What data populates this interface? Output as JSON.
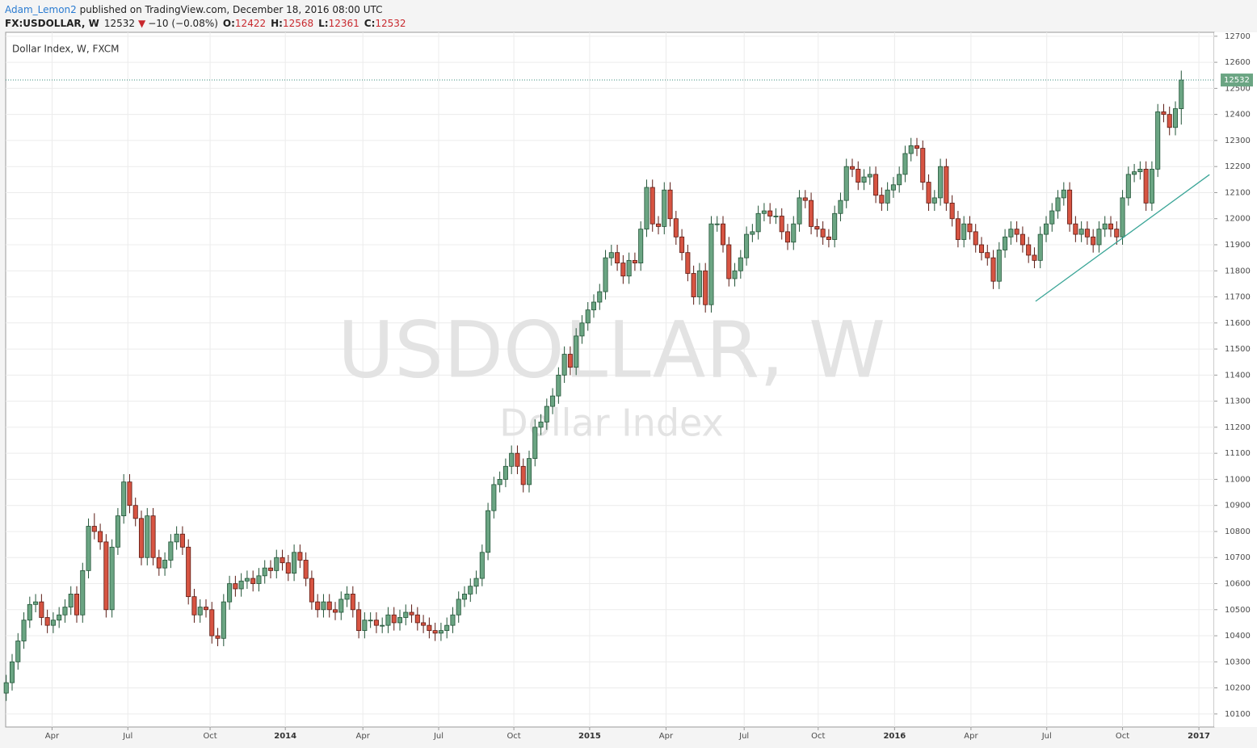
{
  "header": {
    "author": "Adam_Lemon2",
    "published": " published on TradingView.com, December 18, 2016 08:00 UTC",
    "symbol": "FX:USDOLLAR, W",
    "change": "−10 (−0.08%)",
    "o_label": "O:",
    "h_label": "H:",
    "l_label": "L:",
    "c_label": "C:"
  },
  "chart_data": {
    "type": "candlestick",
    "title": "Dollar Index, W, FXCM",
    "watermark": "USDOLLAR, W",
    "watermark_sub": "Dollar Index",
    "up_color": "#6ba583",
    "down_color": "#d75442",
    "up_border": "#225437",
    "down_border": "#5b1a13",
    "trend_color": "#3aa597",
    "grid": true,
    "xlim": [
      -0.1,
      205.6
    ],
    "ylim": [
      10050,
      12715
    ],
    "yticks": [
      10100,
      10200,
      10300,
      10400,
      10500,
      10600,
      10700,
      10800,
      10900,
      11000,
      11100,
      11200,
      11300,
      11400,
      11500,
      11600,
      11700,
      11800,
      11900,
      12000,
      12100,
      12200,
      12300,
      12400,
      12500,
      12600,
      12700
    ],
    "xticks": [
      {
        "value": 7.8,
        "label": "Apr"
      },
      {
        "value": 20.7,
        "label": "Jul"
      },
      {
        "value": 34.7,
        "label": "Oct"
      },
      {
        "value": 47.5,
        "label": "2014"
      },
      {
        "value": 60.7,
        "label": "Apr"
      },
      {
        "value": 73.6,
        "label": "Jul"
      },
      {
        "value": 86.4,
        "label": "Oct"
      },
      {
        "value": 99.3,
        "label": "2015"
      },
      {
        "value": 112.3,
        "label": "Apr"
      },
      {
        "value": 125.6,
        "label": "Jul"
      },
      {
        "value": 138.2,
        "label": "Oct"
      },
      {
        "value": 151.2,
        "label": "2016"
      },
      {
        "value": 164.2,
        "label": "Apr"
      },
      {
        "value": 177.1,
        "label": "Jul"
      },
      {
        "value": 190,
        "label": "Oct"
      },
      {
        "value": 203,
        "label": "2017"
      }
    ],
    "trend_line": {
      "x": [
        175.2,
        204.8
      ],
      "y": [
        11683,
        12169
      ]
    },
    "ohlc": [
      [
        10180,
        10250,
        10150,
        10220
      ],
      [
        10220,
        10330,
        10190,
        10300
      ],
      [
        10300,
        10410,
        10270,
        10380
      ],
      [
        10380,
        10490,
        10350,
        10460
      ],
      [
        10460,
        10550,
        10430,
        10520
      ],
      [
        10520,
        10560,
        10490,
        10530
      ],
      [
        10530,
        10560,
        10440,
        10470
      ],
      [
        10470,
        10500,
        10410,
        10440
      ],
      [
        10440,
        10490,
        10410,
        10460
      ],
      [
        10460,
        10510,
        10430,
        10480
      ],
      [
        10480,
        10540,
        10450,
        10510
      ],
      [
        10510,
        10590,
        10480,
        10560
      ],
      [
        10560,
        10590,
        10450,
        10480
      ],
      [
        10480,
        10680,
        10450,
        10650
      ],
      [
        10650,
        10850,
        10620,
        10820
      ],
      [
        10820,
        10870,
        10770,
        10800
      ],
      [
        10800,
        10830,
        10730,
        10760
      ],
      [
        10760,
        10790,
        10470,
        10500
      ],
      [
        10500,
        10770,
        10470,
        10740
      ],
      [
        10740,
        10890,
        10710,
        10860
      ],
      [
        10860,
        11020,
        10830,
        10990
      ],
      [
        10990,
        11020,
        10870,
        10900
      ],
      [
        10900,
        10930,
        10820,
        10850
      ],
      [
        10850,
        10880,
        10670,
        10700
      ],
      [
        10700,
        10890,
        10670,
        10860
      ],
      [
        10860,
        10890,
        10670,
        10700
      ],
      [
        10700,
        10730,
        10630,
        10660
      ],
      [
        10660,
        10720,
        10630,
        10690
      ],
      [
        10690,
        10790,
        10660,
        10760
      ],
      [
        10760,
        10820,
        10730,
        10790
      ],
      [
        10790,
        10820,
        10710,
        10740
      ],
      [
        10740,
        10770,
        10520,
        10550
      ],
      [
        10550,
        10580,
        10450,
        10480
      ],
      [
        10480,
        10540,
        10450,
        10510
      ],
      [
        10510,
        10540,
        10470,
        10500
      ],
      [
        10500,
        10530,
        10370,
        10400
      ],
      [
        10400,
        10430,
        10360,
        10390
      ],
      [
        10390,
        10560,
        10360,
        10530
      ],
      [
        10530,
        10630,
        10500,
        10600
      ],
      [
        10600,
        10630,
        10550,
        10580
      ],
      [
        10580,
        10640,
        10550,
        10610
      ],
      [
        10610,
        10650,
        10580,
        10620
      ],
      [
        10620,
        10650,
        10570,
        10600
      ],
      [
        10600,
        10660,
        10570,
        10630
      ],
      [
        10630,
        10690,
        10600,
        10660
      ],
      [
        10660,
        10690,
        10620,
        10650
      ],
      [
        10650,
        10730,
        10620,
        10700
      ],
      [
        10700,
        10730,
        10650,
        10680
      ],
      [
        10680,
        10710,
        10610,
        10640
      ],
      [
        10640,
        10750,
        10610,
        10720
      ],
      [
        10720,
        10750,
        10660,
        10690
      ],
      [
        10690,
        10720,
        10590,
        10620
      ],
      [
        10620,
        10650,
        10500,
        10530
      ],
      [
        10530,
        10560,
        10470,
        10500
      ],
      [
        10500,
        10560,
        10470,
        10530
      ],
      [
        10530,
        10560,
        10470,
        10500
      ],
      [
        10500,
        10530,
        10460,
        10490
      ],
      [
        10490,
        10570,
        10460,
        10540
      ],
      [
        10540,
        10590,
        10510,
        10560
      ],
      [
        10560,
        10590,
        10470,
        10500
      ],
      [
        10500,
        10530,
        10390,
        10420
      ],
      [
        10420,
        10490,
        10390,
        10460
      ],
      [
        10460,
        10490,
        10430,
        10460
      ],
      [
        10460,
        10490,
        10410,
        10440
      ],
      [
        10440,
        10470,
        10410,
        10440
      ],
      [
        10440,
        10510,
        10410,
        10480
      ],
      [
        10480,
        10510,
        10420,
        10450
      ],
      [
        10450,
        10500,
        10420,
        10470
      ],
      [
        10470,
        10520,
        10440,
        10490
      ],
      [
        10490,
        10520,
        10450,
        10480
      ],
      [
        10480,
        10510,
        10420,
        10450
      ],
      [
        10450,
        10480,
        10410,
        10440
      ],
      [
        10440,
        10470,
        10390,
        10420
      ],
      [
        10420,
        10450,
        10380,
        10410
      ],
      [
        10410,
        10450,
        10380,
        10420
      ],
      [
        10420,
        10470,
        10390,
        10440
      ],
      [
        10440,
        10510,
        10410,
        10480
      ],
      [
        10480,
        10570,
        10450,
        10540
      ],
      [
        10540,
        10590,
        10510,
        10560
      ],
      [
        10560,
        10620,
        10530,
        10590
      ],
      [
        10590,
        10650,
        10560,
        10620
      ],
      [
        10620,
        10750,
        10590,
        10720
      ],
      [
        10720,
        10910,
        10690,
        10880
      ],
      [
        10880,
        11010,
        10850,
        10980
      ],
      [
        10980,
        11030,
        10950,
        11000
      ],
      [
        11000,
        11080,
        10970,
        11050
      ],
      [
        11050,
        11130,
        11020,
        11100
      ],
      [
        11100,
        11130,
        11020,
        11050
      ],
      [
        11050,
        11080,
        10950,
        10980
      ],
      [
        10980,
        11110,
        10950,
        11080
      ],
      [
        11080,
        11230,
        11050,
        11200
      ],
      [
        11200,
        11250,
        11170,
        11220
      ],
      [
        11220,
        11310,
        11190,
        11280
      ],
      [
        11280,
        11350,
        11250,
        11320
      ],
      [
        11320,
        11430,
        11290,
        11400
      ],
      [
        11400,
        11510,
        11370,
        11480
      ],
      [
        11480,
        11510,
        11400,
        11430
      ],
      [
        11430,
        11580,
        11400,
        11550
      ],
      [
        11550,
        11630,
        11520,
        11600
      ],
      [
        11600,
        11680,
        11570,
        11650
      ],
      [
        11650,
        11710,
        11620,
        11680
      ],
      [
        11680,
        11750,
        11650,
        11720
      ],
      [
        11720,
        11880,
        11690,
        11850
      ],
      [
        11850,
        11900,
        11820,
        11870
      ],
      [
        11870,
        11900,
        11800,
        11830
      ],
      [
        11830,
        11860,
        11750,
        11780
      ],
      [
        11780,
        11870,
        11750,
        11840
      ],
      [
        11840,
        11870,
        11800,
        11830
      ],
      [
        11830,
        11990,
        11800,
        11960
      ],
      [
        11960,
        12150,
        11930,
        12120
      ],
      [
        12120,
        12150,
        11950,
        11980
      ],
      [
        11980,
        12010,
        11940,
        11970
      ],
      [
        11970,
        12140,
        11940,
        12110
      ],
      [
        12110,
        12140,
        11970,
        12000
      ],
      [
        12000,
        12030,
        11900,
        11930
      ],
      [
        11930,
        11960,
        11840,
        11870
      ],
      [
        11870,
        11900,
        11760,
        11790
      ],
      [
        11790,
        11820,
        11670,
        11700
      ],
      [
        11700,
        11830,
        11670,
        11800
      ],
      [
        11800,
        11830,
        11640,
        11670
      ],
      [
        11670,
        12010,
        11640,
        11980
      ],
      [
        11980,
        12010,
        11950,
        11980
      ],
      [
        11980,
        12010,
        11870,
        11900
      ],
      [
        11900,
        11930,
        11740,
        11770
      ],
      [
        11770,
        11830,
        11740,
        11800
      ],
      [
        11800,
        11880,
        11770,
        11850
      ],
      [
        11850,
        11970,
        11820,
        11940
      ],
      [
        11940,
        11980,
        11910,
        11950
      ],
      [
        11950,
        12050,
        11920,
        12020
      ],
      [
        12020,
        12060,
        11990,
        12030
      ],
      [
        12030,
        12060,
        11980,
        12010
      ],
      [
        12010,
        12040,
        11980,
        12010
      ],
      [
        12010,
        12040,
        11920,
        11950
      ],
      [
        11950,
        11980,
        11880,
        11910
      ],
      [
        11910,
        12010,
        11880,
        11980
      ],
      [
        11980,
        12110,
        11950,
        12080
      ],
      [
        12080,
        12110,
        12040,
        12070
      ],
      [
        12070,
        12100,
        11940,
        11970
      ],
      [
        11970,
        12000,
        11930,
        11960
      ],
      [
        11960,
        11990,
        11900,
        11930
      ],
      [
        11930,
        11960,
        11890,
        11920
      ],
      [
        11920,
        12050,
        11890,
        12020
      ],
      [
        12020,
        12100,
        11990,
        12070
      ],
      [
        12070,
        12230,
        12040,
        12200
      ],
      [
        12200,
        12230,
        12160,
        12190
      ],
      [
        12190,
        12220,
        12110,
        12140
      ],
      [
        12140,
        12190,
        12110,
        12160
      ],
      [
        12160,
        12200,
        12130,
        12170
      ],
      [
        12170,
        12200,
        12060,
        12090
      ],
      [
        12090,
        12120,
        12030,
        12060
      ],
      [
        12060,
        12140,
        12030,
        12110
      ],
      [
        12110,
        12160,
        12080,
        12130
      ],
      [
        12130,
        12200,
        12100,
        12170
      ],
      [
        12170,
        12280,
        12140,
        12250
      ],
      [
        12250,
        12310,
        12220,
        12280
      ],
      [
        12280,
        12310,
        12240,
        12270
      ],
      [
        12270,
        12300,
        12110,
        12140
      ],
      [
        12140,
        12170,
        12030,
        12060
      ],
      [
        12060,
        12110,
        12030,
        12080
      ],
      [
        12080,
        12230,
        12050,
        12200
      ],
      [
        12200,
        12230,
        12030,
        12060
      ],
      [
        12060,
        12090,
        11970,
        12000
      ],
      [
        12000,
        12030,
        11890,
        11920
      ],
      [
        11920,
        12010,
        11890,
        11980
      ],
      [
        11980,
        12010,
        11920,
        11950
      ],
      [
        11950,
        11980,
        11870,
        11900
      ],
      [
        11900,
        11930,
        11840,
        11870
      ],
      [
        11870,
        11900,
        11820,
        11850
      ],
      [
        11850,
        11880,
        11730,
        11760
      ],
      [
        11760,
        11910,
        11730,
        11880
      ],
      [
        11880,
        11960,
        11850,
        11930
      ],
      [
        11930,
        11990,
        11900,
        11960
      ],
      [
        11960,
        11990,
        11910,
        11940
      ],
      [
        11940,
        11970,
        11870,
        11900
      ],
      [
        11900,
        11930,
        11830,
        11860
      ],
      [
        11860,
        11890,
        11810,
        11840
      ],
      [
        11840,
        11970,
        11810,
        11940
      ],
      [
        11940,
        12010,
        11910,
        11980
      ],
      [
        11980,
        12060,
        11950,
        12030
      ],
      [
        12030,
        12110,
        12000,
        12080
      ],
      [
        12080,
        12140,
        12050,
        12110
      ],
      [
        12110,
        12140,
        11950,
        11980
      ],
      [
        11980,
        12010,
        11910,
        11940
      ],
      [
        11940,
        11990,
        11910,
        11960
      ],
      [
        11960,
        11990,
        11900,
        11930
      ],
      [
        11930,
        11960,
        11870,
        11900
      ],
      [
        11900,
        11990,
        11870,
        11960
      ],
      [
        11960,
        12010,
        11930,
        11980
      ],
      [
        11980,
        12010,
        11930,
        11960
      ],
      [
        11960,
        11990,
        11900,
        11930
      ],
      [
        11930,
        12110,
        11900,
        12080
      ],
      [
        12080,
        12200,
        12050,
        12170
      ],
      [
        12170,
        12210,
        12140,
        12180
      ],
      [
        12180,
        12220,
        12150,
        12190
      ],
      [
        12190,
        12220,
        12030,
        12060
      ],
      [
        12060,
        12220,
        12030,
        12190
      ],
      [
        12190,
        12440,
        12160,
        12410
      ],
      [
        12410,
        12440,
        12370,
        12400
      ],
      [
        12400,
        12430,
        12320,
        12350
      ],
      [
        12350,
        12450,
        12320,
        12422
      ],
      [
        12422,
        12568,
        12361,
        12532
      ]
    ]
  }
}
